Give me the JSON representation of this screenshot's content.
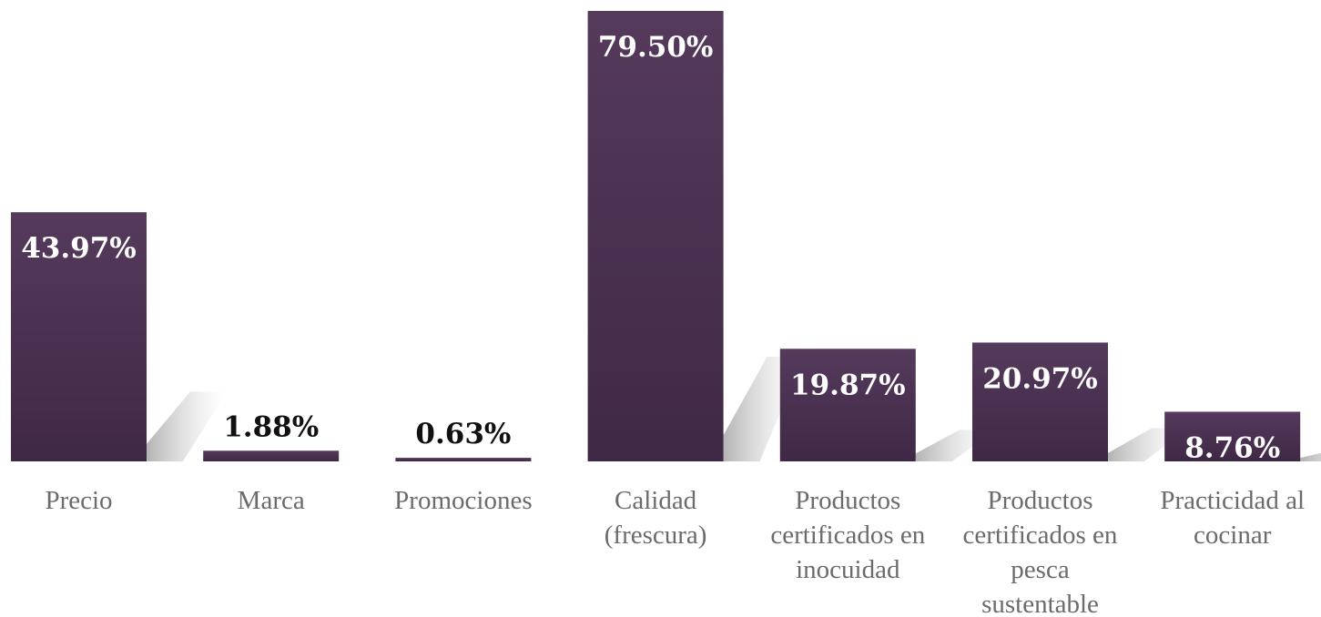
{
  "chart_data": {
    "type": "bar",
    "title": "",
    "xlabel": "",
    "ylabel": "",
    "ylim": [
      0,
      80
    ],
    "grid": false,
    "legend": "none",
    "bar_color": "#4a3150",
    "bar_color_light": "#553a5c",
    "categories": [
      "Precio",
      "Marca",
      "Promociones",
      "Calidad (frescura)",
      "Productos certificados en inocuidad",
      "Productos certificados en pesca sustentable",
      "Practicidad al cocinar"
    ],
    "category_lines": [
      [
        "Precio"
      ],
      [
        "Marca"
      ],
      [
        "Promociones"
      ],
      [
        "Calidad",
        "(frescura)"
      ],
      [
        "Productos",
        "certificados en",
        "inocuidad"
      ],
      [
        "Productos",
        "certificados en",
        "pesca",
        "sustentable"
      ],
      [
        "Practicidad al",
        "cocinar"
      ]
    ],
    "values": [
      43.97,
      1.88,
      0.63,
      79.5,
      19.87,
      20.97,
      8.76
    ],
    "data_labels": [
      "43.97%",
      "1.88%",
      "0.63%",
      "79.50%",
      "19.87%",
      "20.97%",
      "8.76%"
    ]
  }
}
